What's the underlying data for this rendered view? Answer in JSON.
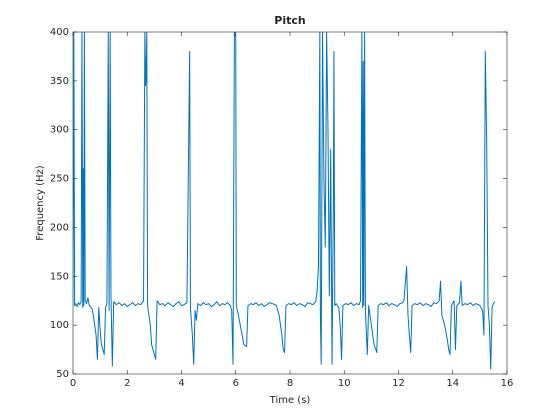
{
  "chart_data": {
    "type": "line",
    "title": "Pitch",
    "x_label": "Time (s)",
    "y_label": "Frequency (Hz)",
    "xlim": [
      0,
      16
    ],
    "xticks": [
      0,
      2,
      4,
      6,
      8,
      10,
      12,
      14,
      16
    ],
    "ylim": [
      50,
      400
    ],
    "yticks": [
      50,
      100,
      150,
      200,
      250,
      300,
      350,
      400
    ],
    "series": [
      {
        "color": "#0072bd",
        "x": [
          0,
          0.03,
          0.06,
          0.1,
          0.15,
          0.2,
          0.25,
          0.3,
          0.33,
          0.36,
          0.38,
          0.4,
          0.42,
          0.45,
          0.5,
          0.55,
          0.6,
          0.7,
          0.75,
          0.8,
          0.85,
          0.9,
          0.95,
          1.0,
          1.05,
          1.1,
          1.15,
          1.2,
          1.25,
          1.3,
          1.33,
          1.37,
          1.4,
          1.45,
          1.5,
          1.6,
          1.7,
          1.8,
          1.9,
          2.0,
          2.1,
          2.2,
          2.3,
          2.4,
          2.5,
          2.6,
          2.65,
          2.68,
          2.7,
          2.72,
          2.75,
          2.8,
          2.85,
          2.9,
          2.95,
          3.0,
          3.05,
          3.1,
          3.2,
          3.3,
          3.4,
          3.5,
          3.6,
          3.7,
          3.8,
          3.9,
          4.0,
          4.1,
          4.2,
          4.3,
          4.33,
          4.4,
          4.45,
          4.5,
          4.55,
          4.6,
          4.7,
          4.8,
          4.9,
          5.0,
          5.1,
          5.2,
          5.3,
          5.4,
          5.5,
          5.6,
          5.7,
          5.8,
          5.85,
          5.9,
          5.95,
          6.0,
          6.02,
          6.1,
          6.2,
          6.3,
          6.4,
          6.45,
          6.55,
          6.65,
          6.75,
          6.85,
          6.95,
          7.05,
          7.15,
          7.25,
          7.35,
          7.45,
          7.5,
          7.6,
          7.7,
          7.75,
          7.8,
          7.85,
          7.95,
          8.05,
          8.15,
          8.25,
          8.35,
          8.45,
          8.55,
          8.65,
          8.75,
          8.85,
          8.95,
          9.0,
          9.05,
          9.1,
          9.12,
          9.15,
          9.2,
          9.25,
          9.3,
          9.35,
          9.4,
          9.45,
          9.5,
          9.55,
          9.6,
          9.62,
          9.65,
          9.7,
          9.8,
          9.85,
          9.9,
          9.95,
          10.05,
          10.15,
          10.25,
          10.35,
          10.45,
          10.55,
          10.6,
          10.65,
          10.68,
          10.7,
          10.72,
          10.75,
          10.78,
          10.85,
          10.9,
          11.0,
          11.1,
          11.2,
          11.25,
          11.35,
          11.45,
          11.55,
          11.65,
          11.75,
          11.85,
          11.95,
          12.05,
          12.15,
          12.2,
          12.3,
          12.35,
          12.4,
          12.45,
          12.5,
          12.6,
          12.7,
          12.8,
          12.9,
          13.0,
          13.1,
          13.2,
          13.3,
          13.4,
          13.5,
          13.55,
          13.6,
          13.7,
          13.8,
          13.85,
          13.9,
          13.95,
          14.05,
          14.1,
          14.15,
          14.25,
          14.3,
          14.35,
          14.45,
          14.55,
          14.65,
          14.75,
          14.85,
          14.95,
          15.0,
          15.1,
          15.15,
          15.2,
          15.25,
          15.3,
          15.35,
          15.4,
          15.45,
          15.5,
          15.55
        ],
        "values": [
          120,
          400,
          120,
          122,
          119,
          123,
          121,
          124,
          400,
          118,
          260,
          120,
          400,
          125,
          122,
          128,
          120,
          117,
          110,
          100,
          90,
          65,
          118,
          95,
          80,
          75,
          70,
          118,
          122,
          400,
          115,
          400,
          130,
          58,
          124,
          121,
          123,
          120,
          122,
          119,
          121,
          123,
          120,
          122,
          121,
          125,
          400,
          345,
          360,
          400,
          120,
          110,
          100,
          80,
          75,
          70,
          65,
          125,
          121,
          122,
          120,
          123,
          121,
          119,
          122,
          124,
          120,
          121,
          123,
          380,
          118,
          90,
          60,
          115,
          105,
          122,
          120,
          123,
          121,
          122,
          119,
          121,
          124,
          120,
          122,
          121,
          123,
          120,
          115,
          60,
          400,
          395,
          120,
          110,
          95,
          80,
          78,
          120,
          122,
          121,
          123,
          120,
          122,
          119,
          121,
          123,
          122,
          121,
          120,
          110,
          90,
          75,
          72,
          120,
          122,
          121,
          123,
          120,
          122,
          121,
          119,
          123,
          122,
          121,
          124,
          135,
          160,
          400,
          110,
          60,
          400,
          250,
          180,
          400,
          300,
          130,
          280,
          60,
          230,
          380,
          120,
          122,
          118,
          100,
          65,
          120,
          122,
          121,
          123,
          120,
          122,
          121,
          125,
          400,
          118,
          370,
          120,
          400,
          115,
          70,
          120,
          100,
          80,
          72,
          120,
          122,
          121,
          123,
          120,
          122,
          121,
          119,
          122,
          123,
          125,
          160,
          110,
          90,
          72,
          120,
          122,
          121,
          123,
          120,
          122,
          121,
          119,
          123,
          122,
          125,
          145,
          110,
          100,
          85,
          75,
          70,
          120,
          125,
          75,
          120,
          123,
          145,
          120,
          122,
          121,
          123,
          120,
          122,
          121,
          120,
          115,
          90,
          380,
          290,
          120,
          100,
          55,
          118,
          122,
          124
        ]
      }
    ]
  }
}
